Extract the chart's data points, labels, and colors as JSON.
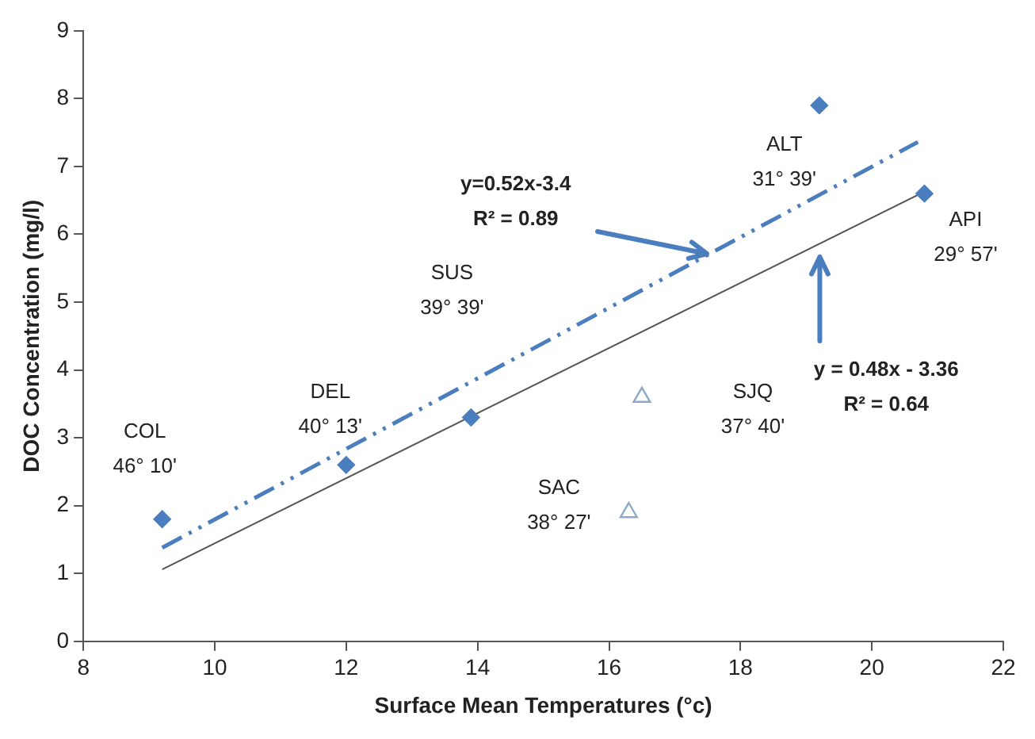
{
  "chart_data": {
    "type": "scatter",
    "xlabel": "Surface Mean Temperatures (°c)",
    "ylabel": "DOC Concentration (mg/l)",
    "xlim": [
      8,
      22
    ],
    "xticks": [
      8,
      10,
      12,
      14,
      16,
      18,
      20,
      22
    ],
    "ylim": [
      0,
      9
    ],
    "yticks": [
      0,
      1,
      2,
      3,
      4,
      5,
      6,
      7,
      8,
      9
    ],
    "grid": false,
    "legend": false,
    "series": [
      {
        "type": "scatter",
        "marker": "diamond",
        "color": "#4a7ebf",
        "x": [
          9.2,
          12.0,
          13.9,
          19.2,
          20.8
        ],
        "values": [
          1.8,
          2.6,
          3.3,
          7.9,
          6.6
        ]
      },
      {
        "type": "scatter",
        "marker": "triangle",
        "color": "#8ea9c8",
        "x": [
          16.5,
          16.3
        ],
        "values": [
          3.6,
          1.9
        ]
      },
      {
        "type": "line",
        "marker": "none",
        "line_style": "dashed",
        "color": "#4a7ebf",
        "x": [
          9.2,
          20.7
        ],
        "values": [
          1.38,
          7.36
        ]
      },
      {
        "type": "line",
        "marker": "none",
        "line_style": "solid",
        "color": "#555555",
        "x": [
          9.2,
          20.7
        ],
        "values": [
          1.06,
          6.58
        ]
      }
    ],
    "annotations": [
      "COL\n46° 10'",
      "DEL\n40° 13'",
      "SUS\n39° 39'",
      "ALT\n31° 39'",
      "API\n29° 57'",
      "SJQ\n37° 40'",
      "SAC\n38° 27'",
      "y=0.52x-3.4\nR² = 0.89",
      "y = 0.48x - 3.36\nR² = 0.64"
    ]
  }
}
